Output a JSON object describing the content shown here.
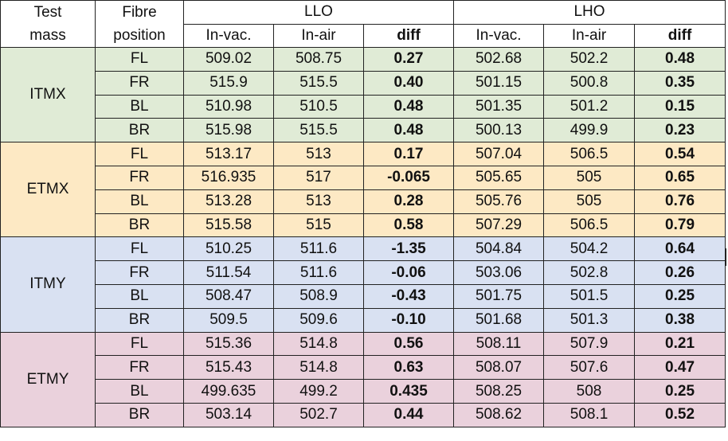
{
  "header": {
    "test_mass": "Test mass",
    "fibre_position": "Fibre position",
    "groups": [
      "LLO",
      "LHO"
    ],
    "sub": [
      "In-vac.",
      "In-air",
      "diff",
      "In-vac.",
      "In-air",
      "diff"
    ]
  },
  "groups": [
    {
      "mass": "ITMX",
      "color": "#e0ebd6",
      "rows": [
        {
          "pos": "FL",
          "llo_vac": "509.02",
          "llo_air": "508.75",
          "llo_diff": "0.27",
          "lho_vac": "502.68",
          "lho_air": "502.2",
          "lho_diff": "0.48"
        },
        {
          "pos": "FR",
          "llo_vac": "515.9",
          "llo_air": "515.5",
          "llo_diff": "0.40",
          "lho_vac": "501.15",
          "lho_air": "500.8",
          "lho_diff": "0.35"
        },
        {
          "pos": "BL",
          "llo_vac": "510.98",
          "llo_air": "510.5",
          "llo_diff": "0.48",
          "lho_vac": "501.35",
          "lho_air": "501.2",
          "lho_diff": "0.15"
        },
        {
          "pos": "BR",
          "llo_vac": "515.98",
          "llo_air": "515.5",
          "llo_diff": "0.48",
          "lho_vac": "500.13",
          "lho_air": "499.9",
          "lho_diff": "0.23"
        }
      ]
    },
    {
      "mass": "ETMX",
      "color": "#fde9c4",
      "rows": [
        {
          "pos": "FL",
          "llo_vac": "513.17",
          "llo_air": "513",
          "llo_diff": "0.17",
          "lho_vac": "507.04",
          "lho_air": "506.5",
          "lho_diff": "0.54"
        },
        {
          "pos": "FR",
          "llo_vac": "516.935",
          "llo_air": "517",
          "llo_diff": "-0.065",
          "lho_vac": "505.65",
          "lho_air": "505",
          "lho_diff": "0.65"
        },
        {
          "pos": "BL",
          "llo_vac": "513.28",
          "llo_air": "513",
          "llo_diff": "0.28",
          "lho_vac": "505.76",
          "lho_air": "505",
          "lho_diff": "0.76"
        },
        {
          "pos": "BR",
          "llo_vac": "515.58",
          "llo_air": "515",
          "llo_diff": "0.58",
          "lho_vac": "507.29",
          "lho_air": "506.5",
          "lho_diff": "0.79"
        }
      ]
    },
    {
      "mass": "ITMY",
      "color": "#d9e1f2",
      "rows": [
        {
          "pos": "FL",
          "llo_vac": "510.25",
          "llo_air": "511.6",
          "llo_diff": "-1.35",
          "lho_vac": "504.84",
          "lho_air": "504.2",
          "lho_diff": "0.64"
        },
        {
          "pos": "FR",
          "llo_vac": "511.54",
          "llo_air": "511.6",
          "llo_diff": "-0.06",
          "lho_vac": "503.06",
          "lho_air": "502.8",
          "lho_diff": "0.26"
        },
        {
          "pos": "BL",
          "llo_vac": "508.47",
          "llo_air": "508.9",
          "llo_diff": "-0.43",
          "lho_vac": "501.75",
          "lho_air": "501.5",
          "lho_diff": "0.25"
        },
        {
          "pos": "BR",
          "llo_vac": "509.5",
          "llo_air": "509.6",
          "llo_diff": "-0.10",
          "lho_vac": "501.68",
          "lho_air": "501.3",
          "lho_diff": "0.38"
        }
      ]
    },
    {
      "mass": "ETMY",
      "color": "#ead1dc",
      "rows": [
        {
          "pos": "FL",
          "llo_vac": "515.36",
          "llo_air": "514.8",
          "llo_diff": "0.56",
          "lho_vac": "508.11",
          "lho_air": "507.9",
          "lho_diff": "0.21"
        },
        {
          "pos": "FR",
          "llo_vac": "515.43",
          "llo_air": "514.8",
          "llo_diff": "0.63",
          "lho_vac": "508.07",
          "lho_air": "507.6",
          "lho_diff": "0.47"
        },
        {
          "pos": "BL",
          "llo_vac": "499.635",
          "llo_air": "499.2",
          "llo_diff": "0.435",
          "lho_vac": "508.25",
          "lho_air": "508",
          "lho_diff": "0.25"
        },
        {
          "pos": "BR",
          "llo_vac": "503.14",
          "llo_air": "502.7",
          "llo_diff": "0.44",
          "lho_vac": "508.62",
          "lho_air": "508.1",
          "lho_diff": "0.52"
        }
      ]
    }
  ]
}
